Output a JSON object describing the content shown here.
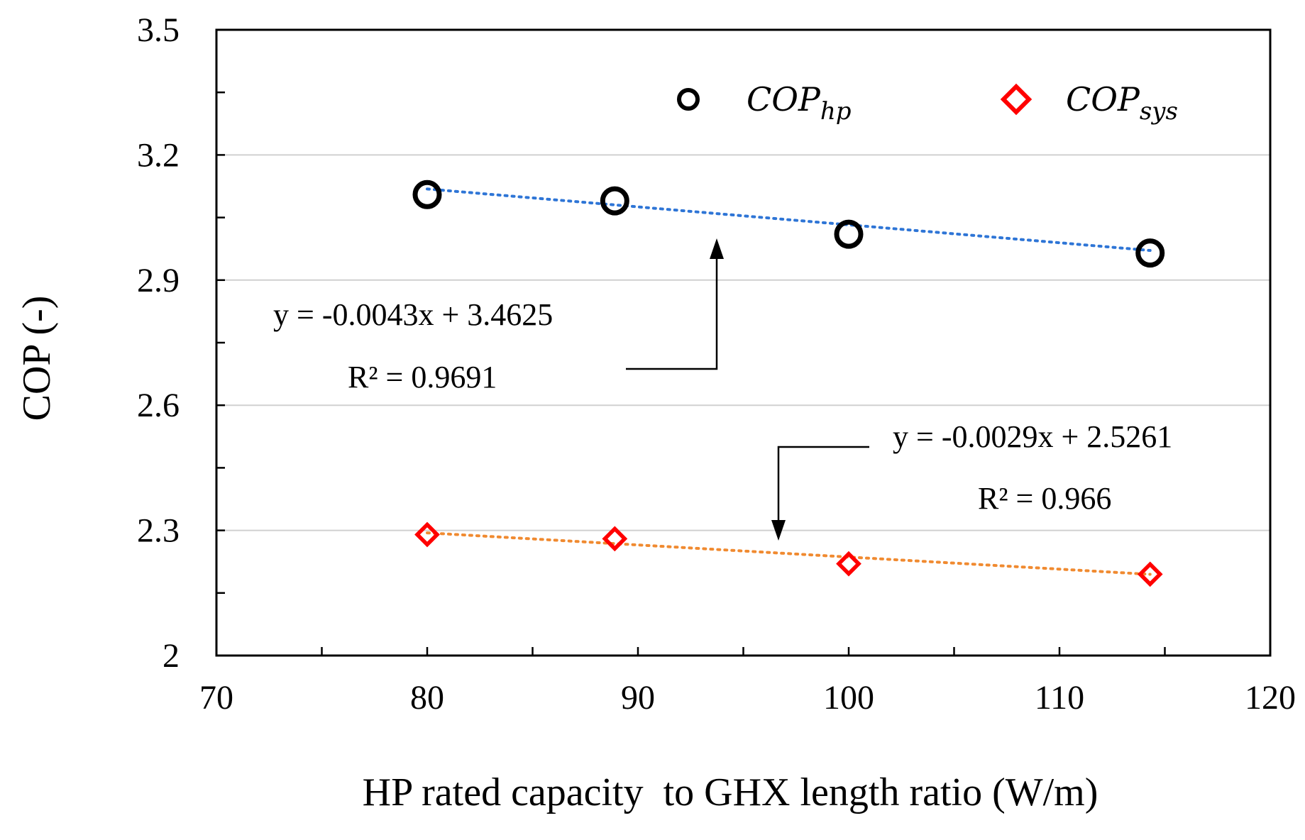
{
  "chart_data": {
    "type": "scatter",
    "xlabel": "HP rated capacity  to GHX length ratio (W/m)",
    "ylabel": "COP (-)",
    "xlim": [
      70,
      120
    ],
    "ylim": [
      2,
      3.5
    ],
    "x_ticks": [
      "70",
      "80",
      "90",
      "100",
      "110",
      "120"
    ],
    "y_ticks": [
      "2",
      "2.3",
      "2.6",
      "2.9",
      "3.2",
      "3.5"
    ],
    "x_minor_step": 5,
    "y_minor_step": 0.15,
    "gridlines": "horizontal-major",
    "legend_position": "top",
    "series": [
      {
        "name": "COP_hp",
        "legend_main": "COP",
        "legend_sub": "hp",
        "marker": "circle",
        "color": "#000000",
        "x": [
          80,
          88.9,
          100,
          114.3
        ],
        "y": [
          3.105,
          3.09,
          3.01,
          2.965
        ],
        "trendline": {
          "slope": -0.0043,
          "intercept": 3.4625,
          "color": "#2E75D6",
          "equation": "y = -0.0043x + 3.4625",
          "r2": "R² = 0.9691"
        }
      },
      {
        "name": "COP_sys",
        "legend_main": "COP",
        "legend_sub": "sys",
        "marker": "diamond",
        "color": "#FF0000",
        "x": [
          80,
          88.9,
          100,
          114.3
        ],
        "y": [
          2.29,
          2.28,
          2.22,
          2.195
        ],
        "trendline": {
          "slope": -0.0029,
          "intercept": 2.5261,
          "color": "#F08A30",
          "equation": "y = -0.0029x + 2.5261",
          "r2": "R² = 0.966"
        }
      }
    ]
  }
}
